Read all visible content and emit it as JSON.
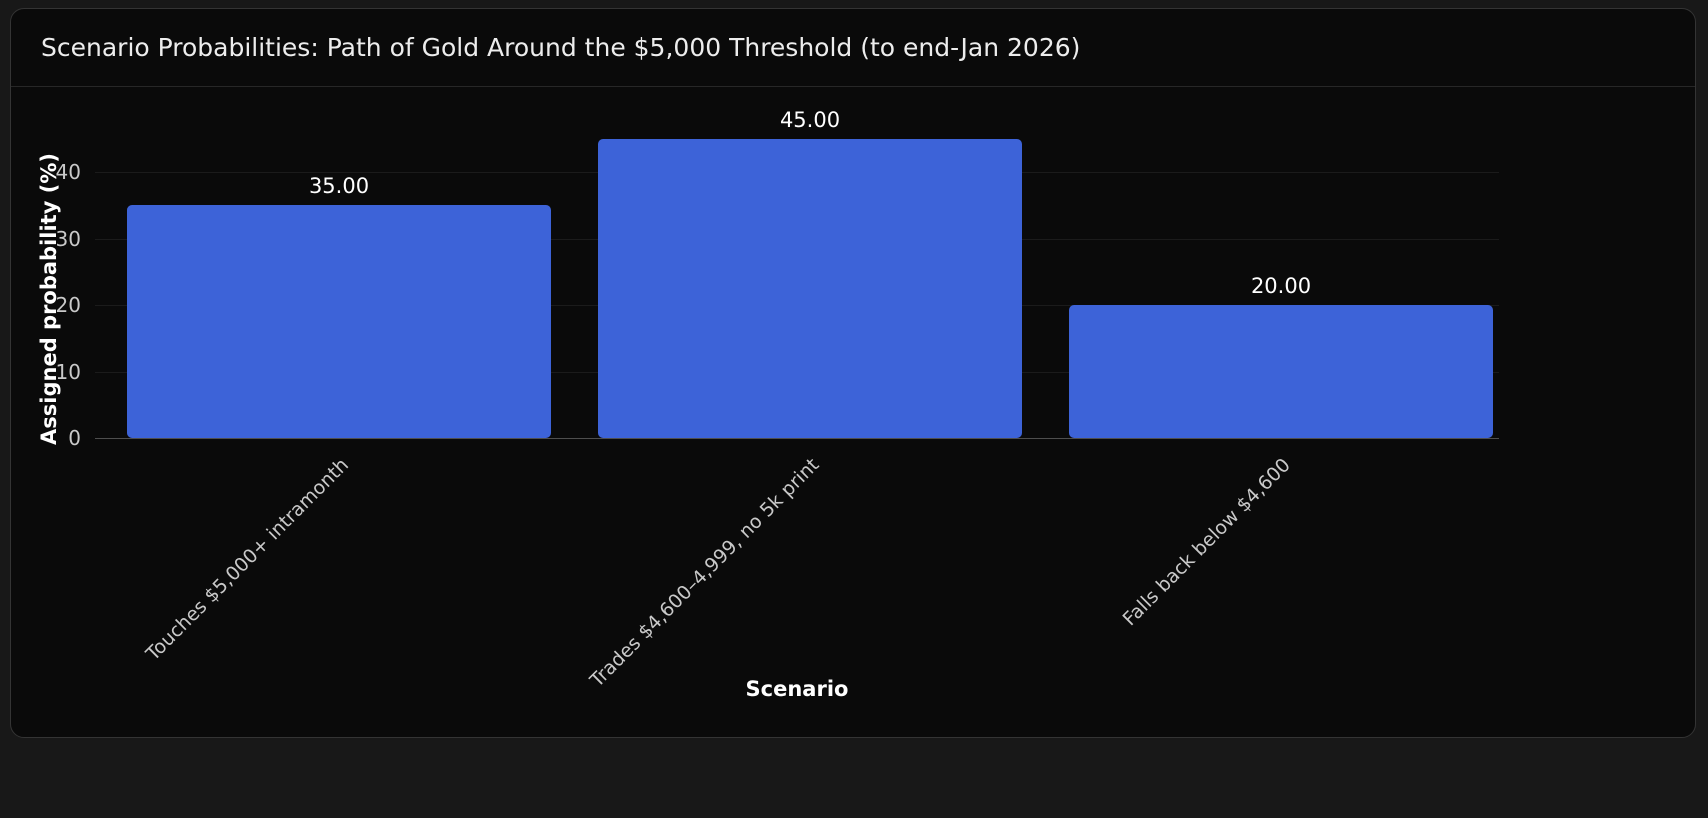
{
  "chart_data": {
    "type": "bar",
    "title": "Scenario Probabilities: Path of Gold Around the $5,000 Threshold (to end-Jan 2026)",
    "categories": [
      "Touches $5,000+ intramonth",
      "Trades $4,600–4,999, no 5k print",
      "Falls back below $4,600"
    ],
    "values": [
      35,
      45,
      20
    ],
    "value_labels": [
      "35.00",
      "45.00",
      "20.00"
    ],
    "xlabel": "Scenario",
    "ylabel": "Assigned probability (%)",
    "yticks": [
      0,
      10,
      20,
      30,
      40
    ],
    "ylim": [
      0,
      47
    ],
    "grid": true,
    "legend": false,
    "bar_color": "#3d63d8",
    "background_color": "#0a0a0a",
    "text_color": "#ffffff"
  }
}
